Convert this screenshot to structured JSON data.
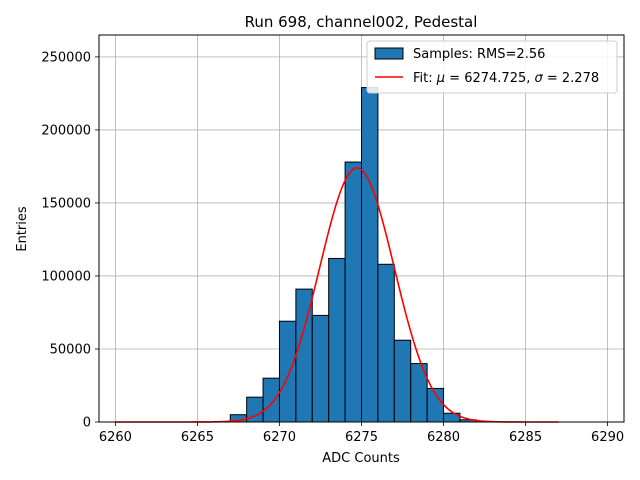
{
  "chart_data": {
    "type": "bar",
    "title": "Run 698, channel002, Pedestal",
    "xlabel": "ADC Counts",
    "ylabel": "Entries",
    "xlim": [
      6259,
      6291
    ],
    "ylim": [
      0,
      265000
    ],
    "xticks": [
      6260,
      6265,
      6270,
      6275,
      6280,
      6285,
      6290
    ],
    "yticks": [
      0,
      50000,
      100000,
      150000,
      200000,
      250000
    ],
    "grid": true,
    "legend_position": "top-right",
    "histogram": {
      "name": "Samples: RMS=2.56",
      "color": "#1f77b4",
      "bins": [
        {
          "x0": 6267,
          "x1": 6268,
          "value": 5000
        },
        {
          "x0": 6268,
          "x1": 6269,
          "value": 17000
        },
        {
          "x0": 6269,
          "x1": 6270,
          "value": 30000
        },
        {
          "x0": 6270,
          "x1": 6271,
          "value": 69000
        },
        {
          "x0": 6271,
          "x1": 6272,
          "value": 91000
        },
        {
          "x0": 6272,
          "x1": 6273,
          "value": 73000
        },
        {
          "x0": 6273,
          "x1": 6274,
          "value": 112000
        },
        {
          "x0": 6274,
          "x1": 6275,
          "value": 178000
        },
        {
          "x0": 6275,
          "x1": 6276,
          "value": 229000
        },
        {
          "x0": 6276,
          "x1": 6277,
          "value": 108000
        },
        {
          "x0": 6277,
          "x1": 6278,
          "value": 56000
        },
        {
          "x0": 6278,
          "x1": 6279,
          "value": 40000
        },
        {
          "x0": 6279,
          "x1": 6280,
          "value": 23000
        },
        {
          "x0": 6280,
          "x1": 6281,
          "value": 6000
        },
        {
          "x0": 6281,
          "x1": 6282,
          "value": 1500
        }
      ]
    },
    "fit": {
      "name_prefix": "Fit: ",
      "mu_symbol": "μ",
      "sigma_symbol": "σ",
      "mu_text": " = 6274.725, ",
      "sigma_text": " = 2.278",
      "mu": 6274.725,
      "sigma": 2.278,
      "amplitude": 174000,
      "x_range": [
        6260,
        6287
      ],
      "color": "#ff0000"
    }
  }
}
